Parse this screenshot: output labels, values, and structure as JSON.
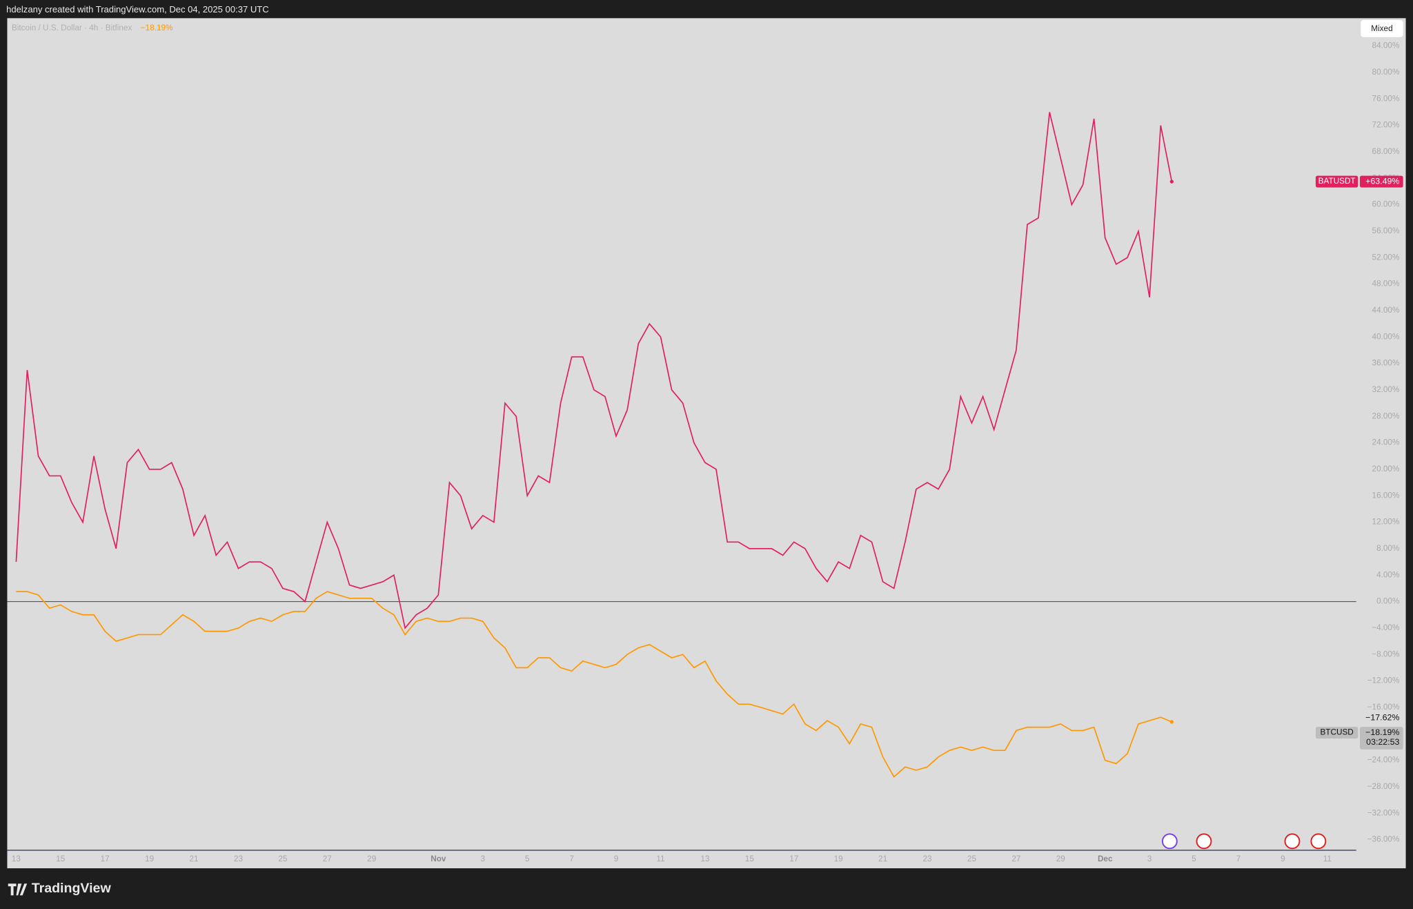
{
  "header": {
    "credit": "hdelzany created with TradingView.com, Dec 04, 2025 00:37 UTC"
  },
  "toolbar": {
    "scale_mode": "Mixed"
  },
  "footer": {
    "brand": "TradingView"
  },
  "chart_data": {
    "type": "line",
    "symbol_info": "Bitcoin / U.S. Dollar · 4h · Bitfinex",
    "x": [
      13,
      13.5,
      14,
      14.5,
      15,
      15.5,
      16,
      16.5,
      17,
      17.5,
      18,
      18.5,
      19,
      19.5,
      20,
      20.5,
      21,
      21.5,
      22,
      22.5,
      23,
      23.5,
      24,
      24.5,
      25,
      25.5,
      26,
      26.5,
      27,
      27.5,
      28,
      28.5,
      29,
      29.5,
      30,
      30.5,
      31,
      31.5,
      32,
      32.5,
      33,
      33.5,
      34,
      34.5,
      35,
      35.5,
      36,
      36.5,
      37,
      37.5,
      38,
      38.5,
      39,
      39.5,
      40,
      40.5,
      41,
      41.5,
      42,
      42.5,
      43,
      43.5,
      44,
      44.5,
      45,
      45.5,
      46,
      46.5,
      47,
      47.5,
      48,
      48.5,
      49,
      49.5,
      50,
      50.5,
      51,
      51.5,
      52,
      52.5,
      53,
      53.5,
      54,
      54.5,
      55,
      55.5,
      56,
      56.5,
      57,
      57.5,
      58,
      58.5,
      59,
      59.5,
      60,
      60.5,
      61,
      61.5,
      62,
      62.5,
      63,
      63.5,
      64,
      64.5,
      65
    ],
    "series": [
      {
        "name": "BATUSDT",
        "color": "#e0205f",
        "values": [
          6,
          35,
          22,
          19,
          19,
          15,
          12,
          22,
          14,
          8,
          21,
          23,
          20,
          20,
          21,
          17,
          10,
          13,
          7,
          9,
          5,
          6,
          6,
          5,
          2,
          1.5,
          0,
          6,
          12,
          8,
          2.5,
          2,
          2.5,
          3,
          4,
          -4,
          -2,
          -1,
          1,
          18,
          16,
          11,
          13,
          12,
          30,
          28,
          16,
          19,
          18,
          30,
          37,
          37,
          32,
          31,
          25,
          29,
          39,
          42,
          40,
          32,
          30,
          24,
          21,
          20,
          9,
          9,
          8,
          8,
          8,
          7,
          9,
          8,
          5,
          3,
          6,
          5,
          10,
          9,
          3,
          2,
          9,
          17,
          18,
          17,
          20,
          31,
          27,
          31,
          26,
          32,
          38,
          57,
          58,
          74,
          67,
          60,
          63,
          73,
          55,
          51,
          52,
          56,
          46,
          72,
          63.49
        ],
        "value_labels": [
          null,
          null,
          null,
          null,
          null,
          null,
          null,
          null,
          null,
          null,
          null,
          null,
          null,
          null,
          null,
          null,
          null,
          null,
          null,
          null,
          null,
          null,
          null,
          null,
          null,
          null,
          null,
          null,
          null,
          null,
          null,
          null,
          null,
          null,
          null,
          null,
          null,
          null,
          null,
          null,
          null,
          null,
          null,
          null,
          null,
          null,
          null,
          null,
          null,
          null,
          null,
          null,
          null,
          null,
          null,
          null,
          null,
          null,
          null,
          null,
          null,
          null,
          null,
          null,
          null,
          null,
          null,
          null,
          null,
          null,
          null,
          null,
          null,
          null,
          null,
          null,
          null,
          null,
          null,
          null,
          null,
          null,
          null,
          null,
          null,
          null,
          null,
          null,
          null,
          null,
          null,
          null,
          null,
          null,
          null,
          null,
          null,
          null,
          null,
          null,
          null,
          null,
          null,
          null,
          "+63.49%"
        ]
      },
      {
        "name": "BTCUSD",
        "color": "#ff9800",
        "values": [
          1.5,
          1.5,
          1,
          -1,
          -0.5,
          -1.5,
          -2,
          -2,
          -4.5,
          -6,
          -5.5,
          -5,
          -5,
          -5,
          -3.5,
          -2,
          -3,
          -4.5,
          -4.5,
          -4.5,
          -4,
          -3,
          -2.5,
          -3,
          -2,
          -1.5,
          -1.5,
          0.5,
          1.5,
          1,
          0.5,
          0.5,
          0.5,
          -1,
          -2,
          -5,
          -3,
          -2.5,
          -3,
          -3,
          -2.5,
          -2.5,
          -3,
          -5.5,
          -7,
          -10,
          -10,
          -8.5,
          -8.5,
          -10,
          -10.5,
          -9,
          -9.5,
          -10,
          -9.5,
          -8,
          -7,
          -6.5,
          -7.5,
          -8.5,
          -8,
          -10,
          -9,
          -12,
          -14,
          -15.5,
          -15.5,
          -16,
          -16.5,
          -17,
          -15.5,
          -18.5,
          -19.5,
          -18,
          -19,
          -21.5,
          -18.5,
          -19,
          -23.5,
          -26.5,
          -25,
          -25.5,
          -25,
          -23.5,
          -22.5,
          -22,
          -22.5,
          -22,
          -22.5,
          -22.5,
          -19.5,
          -19,
          -19,
          -19,
          -18.5,
          -19.5,
          -19.5,
          -19,
          -24,
          -24.5,
          -23,
          -18.5,
          -18,
          -17.5,
          -18.19
        ],
        "value_labels": [
          null,
          null,
          null,
          null,
          null,
          null,
          null,
          null,
          null,
          null,
          null,
          null,
          null,
          null,
          null,
          null,
          null,
          null,
          null,
          null,
          null,
          null,
          null,
          null,
          null,
          null,
          null,
          null,
          null,
          null,
          null,
          null,
          null,
          null,
          null,
          null,
          null,
          null,
          null,
          null,
          null,
          null,
          null,
          null,
          null,
          null,
          null,
          null,
          null,
          null,
          null,
          null,
          null,
          null,
          null,
          null,
          null,
          null,
          null,
          null,
          null,
          null,
          null,
          null,
          null,
          null,
          null,
          null,
          null,
          null,
          null,
          null,
          null,
          null,
          null,
          null,
          null,
          null,
          null,
          null,
          null,
          null,
          null,
          null,
          null,
          null,
          null,
          null,
          null,
          null,
          null,
          null,
          null,
          null,
          null,
          null,
          null,
          null,
          null,
          null,
          null,
          null,
          null,
          null,
          "−18.19%"
        ],
        "price_line": {
          "value": -17.62,
          "label": "−17.62%"
        },
        "countdown": "03:22:53"
      }
    ],
    "xlim": [
      12.6,
      73.3
    ],
    "xticks": [
      13,
      15,
      17,
      19,
      21,
      23,
      25,
      27,
      29,
      {
        "value": 32,
        "label": "Nov"
      },
      {
        "value": 34,
        "label": "3"
      },
      {
        "value": 36,
        "label": "5"
      },
      {
        "value": 38,
        "label": "7"
      },
      {
        "value": 40,
        "label": "9"
      },
      {
        "value": 42,
        "label": "11"
      },
      {
        "value": 44,
        "label": "13"
      },
      {
        "value": 46,
        "label": "15"
      },
      {
        "value": 48,
        "label": "17"
      },
      {
        "value": 50,
        "label": "19"
      },
      {
        "value": 52,
        "label": "21"
      },
      {
        "value": 54,
        "label": "23"
      },
      {
        "value": 56,
        "label": "25"
      },
      {
        "value": 58,
        "label": "27"
      },
      {
        "value": 60,
        "label": "29"
      },
      {
        "value": 62,
        "label": "Dec"
      },
      {
        "value": 64,
        "label": "3"
      },
      {
        "value": 66,
        "label": "5"
      },
      {
        "value": 68,
        "label": "7"
      },
      {
        "value": 70,
        "label": "9"
      },
      {
        "value": 72,
        "label": "11"
      }
    ],
    "ylim": [
      -37.6,
      88.2
    ],
    "yticks": [
      {
        "value": -36,
        "label": "−36.00%"
      },
      {
        "value": -32,
        "label": "−32.00%"
      },
      {
        "value": -28,
        "label": "−28.00%"
      },
      {
        "value": -24,
        "label": "−24.00%"
      },
      {
        "value": -20,
        "label": "−20.00%"
      },
      {
        "value": -16,
        "label": "−16.00%"
      },
      {
        "value": -12,
        "label": "−12.00%"
      },
      {
        "value": -8,
        "label": "−8.00%"
      },
      {
        "value": -4,
        "label": "−4.00%"
      },
      {
        "value": 0,
        "label": "0.00%"
      },
      {
        "value": 4,
        "label": "4.00%"
      },
      {
        "value": 8,
        "label": "8.00%"
      },
      {
        "value": 12,
        "label": "12.00%"
      },
      {
        "value": 16,
        "label": "16.00%"
      },
      {
        "value": 20,
        "label": "20.00%"
      },
      {
        "value": 24,
        "label": "24.00%"
      },
      {
        "value": 28,
        "label": "28.00%"
      },
      {
        "value": 32,
        "label": "32.00%"
      },
      {
        "value": 36,
        "label": "36.00%"
      },
      {
        "value": 40,
        "label": "40.00%"
      },
      {
        "value": 44,
        "label": "44.00%"
      },
      {
        "value": 48,
        "label": "48.00%"
      },
      {
        "value": 52,
        "label": "52.00%"
      },
      {
        "value": 56,
        "label": "56.00%"
      },
      {
        "value": 60,
        "label": "60.00%"
      },
      {
        "value": 64,
        "label": "64.00%"
      },
      {
        "value": 68,
        "label": "68.00%"
      },
      {
        "value": 72,
        "label": "72.00%"
      },
      {
        "value": 76,
        "label": "76.00%"
      },
      {
        "value": 80,
        "label": "80.00%"
      },
      {
        "value": 84,
        "label": "84.00%"
      }
    ],
    "grid": false,
    "baseline_value": 0
  }
}
